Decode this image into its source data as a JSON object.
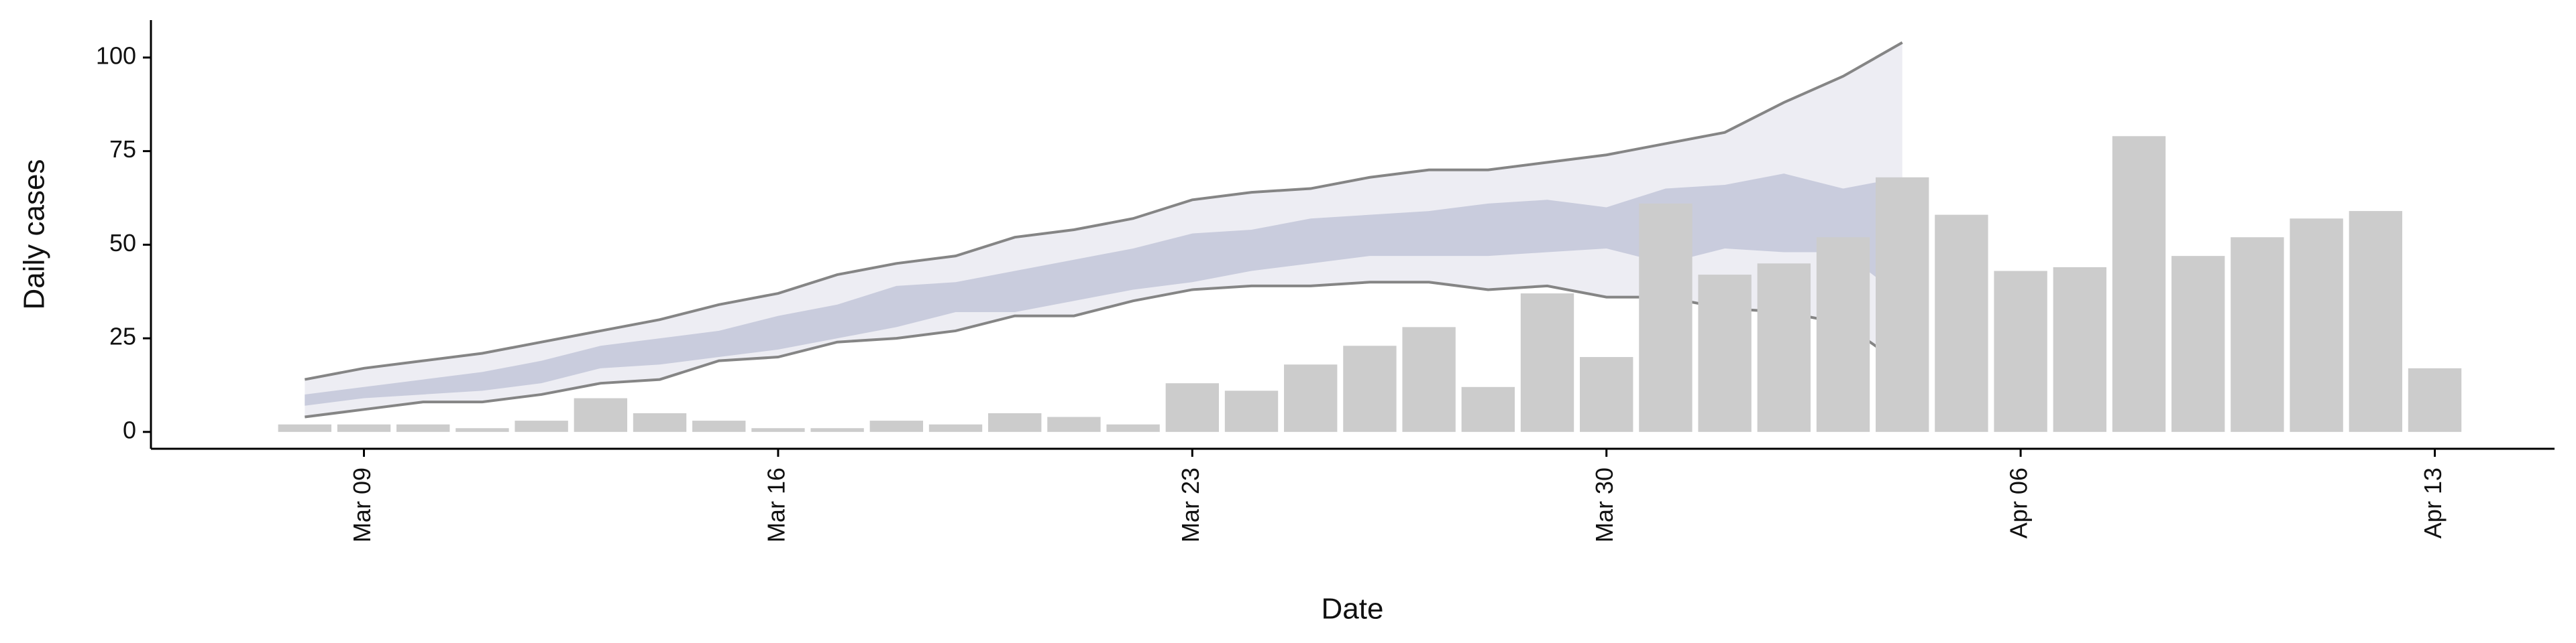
{
  "chart_data": {
    "type": "bar",
    "x_label": "Date",
    "y_label": "Daily cases",
    "x": [
      "Mar 08",
      "Mar 09",
      "Mar 10",
      "Mar 11",
      "Mar 12",
      "Mar 13",
      "Mar 14",
      "Mar 15",
      "Mar 16",
      "Mar 17",
      "Mar 18",
      "Mar 19",
      "Mar 20",
      "Mar 21",
      "Mar 22",
      "Mar 23",
      "Mar 24",
      "Mar 25",
      "Mar 26",
      "Mar 27",
      "Mar 28",
      "Mar 29",
      "Mar 30",
      "Mar 31",
      "Apr 01",
      "Apr 02",
      "Apr 03",
      "Apr 04",
      "Apr 05",
      "Apr 06",
      "Apr 07",
      "Apr 08",
      "Apr 09",
      "Apr 10",
      "Apr 11",
      "Apr 12",
      "Apr 13"
    ],
    "values": [
      2,
      2,
      2,
      1,
      3,
      9,
      5,
      3,
      1,
      1,
      3,
      2,
      5,
      4,
      2,
      13,
      11,
      18,
      23,
      28,
      12,
      37,
      20,
      61,
      42,
      45,
      52,
      68,
      58,
      43,
      44,
      79,
      47,
      52,
      57,
      59,
      17
    ],
    "color": "#cccccc",
    "bands": [
      {
        "lower": [
          4,
          6,
          8,
          8,
          10,
          13,
          14,
          19,
          20,
          24,
          25,
          27,
          31,
          31,
          35,
          38,
          39,
          39,
          40,
          40,
          38,
          39,
          36,
          36,
          33,
          32,
          29,
          18,
          null,
          null,
          null,
          null,
          null,
          null,
          null,
          null,
          null
        ],
        "upper": [
          14,
          17,
          19,
          21,
          24,
          27,
          30,
          34,
          37,
          42,
          45,
          47,
          52,
          54,
          57,
          62,
          64,
          65,
          68,
          70,
          70,
          72,
          74,
          77,
          80,
          88,
          95,
          104,
          null,
          null,
          null,
          null,
          null,
          null,
          null,
          null,
          null
        ],
        "color": "#ededf3",
        "line_color": "#858585"
      },
      {
        "lower": [
          7,
          9,
          10,
          11,
          13,
          17,
          18,
          20,
          22,
          25,
          28,
          32,
          32,
          35,
          38,
          40,
          43,
          45,
          47,
          47,
          47,
          48,
          49,
          45,
          49,
          48,
          48,
          36,
          null,
          null,
          null,
          null,
          null,
          null,
          null,
          null,
          null
        ],
        "upper": [
          10,
          12,
          14,
          16,
          19,
          23,
          25,
          27,
          31,
          34,
          39,
          40,
          43,
          46,
          49,
          53,
          54,
          57,
          58,
          59,
          61,
          62,
          60,
          65,
          66,
          69,
          65,
          68,
          null,
          null,
          null,
          null,
          null,
          null,
          null,
          null,
          null
        ],
        "color": "#c9ccdd"
      }
    ],
    "ylim": [
      -4.5,
      110
    ],
    "yticks": [
      0,
      25,
      50,
      75,
      100
    ],
    "xticks": [
      "Mar 09",
      "Mar 16",
      "Mar 23",
      "Mar 30",
      "Apr 06",
      "Apr 13"
    ]
  }
}
